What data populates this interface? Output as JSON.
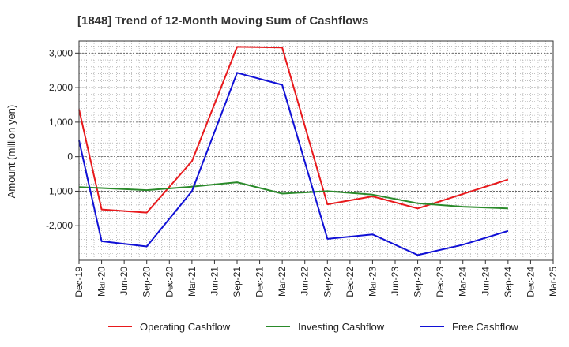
{
  "chart_data": {
    "type": "line",
    "title": "[1848]  Trend of 12-Month Moving Sum of Cashflows",
    "xlabel": "",
    "ylabel": "Amount (million yen)",
    "categories": [
      "Dec-19",
      "Mar-20",
      "Jun-20",
      "Sep-20",
      "Dec-20",
      "Mar-21",
      "Jun-21",
      "Sep-21",
      "Dec-21",
      "Mar-22",
      "Jun-22",
      "Sep-22",
      "Dec-22",
      "Mar-23",
      "Jun-23",
      "Sep-23",
      "Dec-23",
      "Mar-24",
      "Jun-24",
      "Sep-24",
      "Dec-24",
      "Mar-25"
    ],
    "ylim": [
      -3000,
      3350
    ],
    "yticks": [
      -2000,
      -1000,
      0,
      1000,
      2000,
      3000
    ],
    "ytick_labels": [
      "-2,000",
      "-1,000",
      "0",
      "1,000",
      "2,000",
      "3,000"
    ],
    "grid": true,
    "legend_position": "bottom",
    "series": [
      {
        "name": "Operating Cashflow",
        "color": "#e8191c",
        "values": [
          1370,
          -1530,
          null,
          -1620,
          null,
          -130,
          null,
          3180,
          null,
          3160,
          null,
          -1380,
          null,
          -1150,
          null,
          -1500,
          null,
          null,
          null,
          -660,
          null,
          null
        ]
      },
      {
        "name": "Investing Cashflow",
        "color": "#2a8a2a",
        "values": [
          -880,
          -910,
          null,
          -970,
          null,
          -870,
          null,
          -740,
          null,
          -1070,
          null,
          -1000,
          null,
          -1100,
          null,
          -1350,
          null,
          -1450,
          null,
          -1500,
          null,
          null
        ]
      },
      {
        "name": "Free Cashflow",
        "color": "#1010d6",
        "values": [
          470,
          -2450,
          null,
          -2600,
          null,
          -1000,
          null,
          2430,
          null,
          2080,
          null,
          -2380,
          null,
          -2250,
          null,
          -2850,
          null,
          -2550,
          null,
          -2150,
          null,
          null
        ]
      }
    ]
  }
}
